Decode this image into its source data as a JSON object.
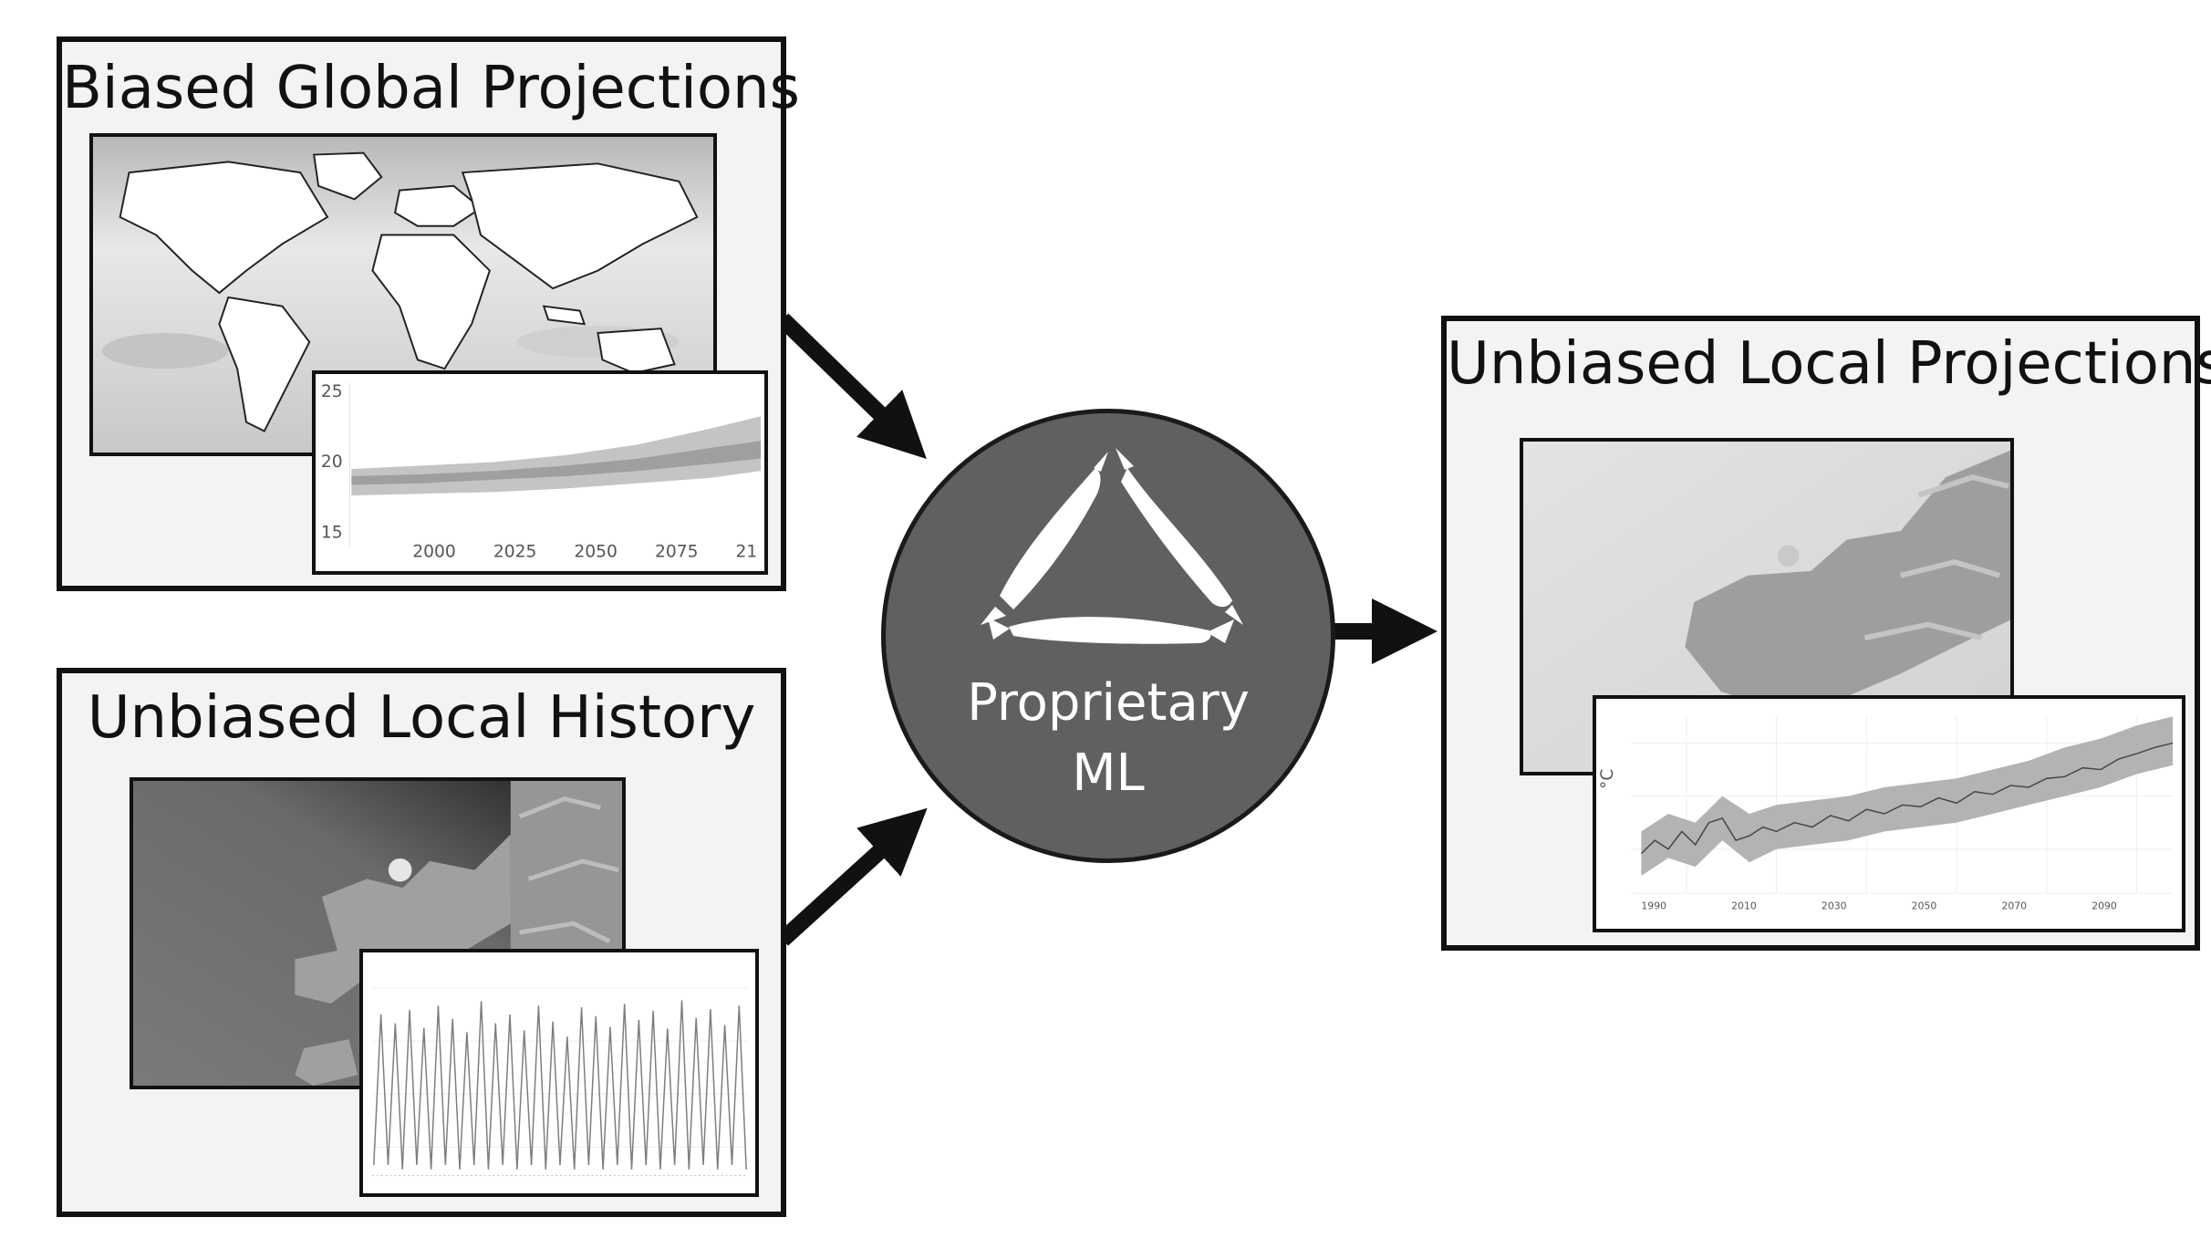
{
  "panels": {
    "global": {
      "title": "Biased Global Projections"
    },
    "history": {
      "title": "Unbiased Local History"
    },
    "projections": {
      "title": "Unbiased Local Projections"
    }
  },
  "hub": {
    "line1": "Proprietary",
    "line2": "ML",
    "icon": "fish-cycle-icon"
  },
  "global_chart": {
    "y_ticks": [
      "25",
      "20",
      "15"
    ],
    "x_ticks": [
      "2000",
      "2025",
      "2050",
      "2075",
      "21"
    ]
  },
  "projection_chart": {
    "y_unit": "°C"
  },
  "colors": {
    "panel_bg": "#f3f3f3",
    "border": "#111111",
    "hub": "#606062",
    "band": "#b3b3b3"
  }
}
